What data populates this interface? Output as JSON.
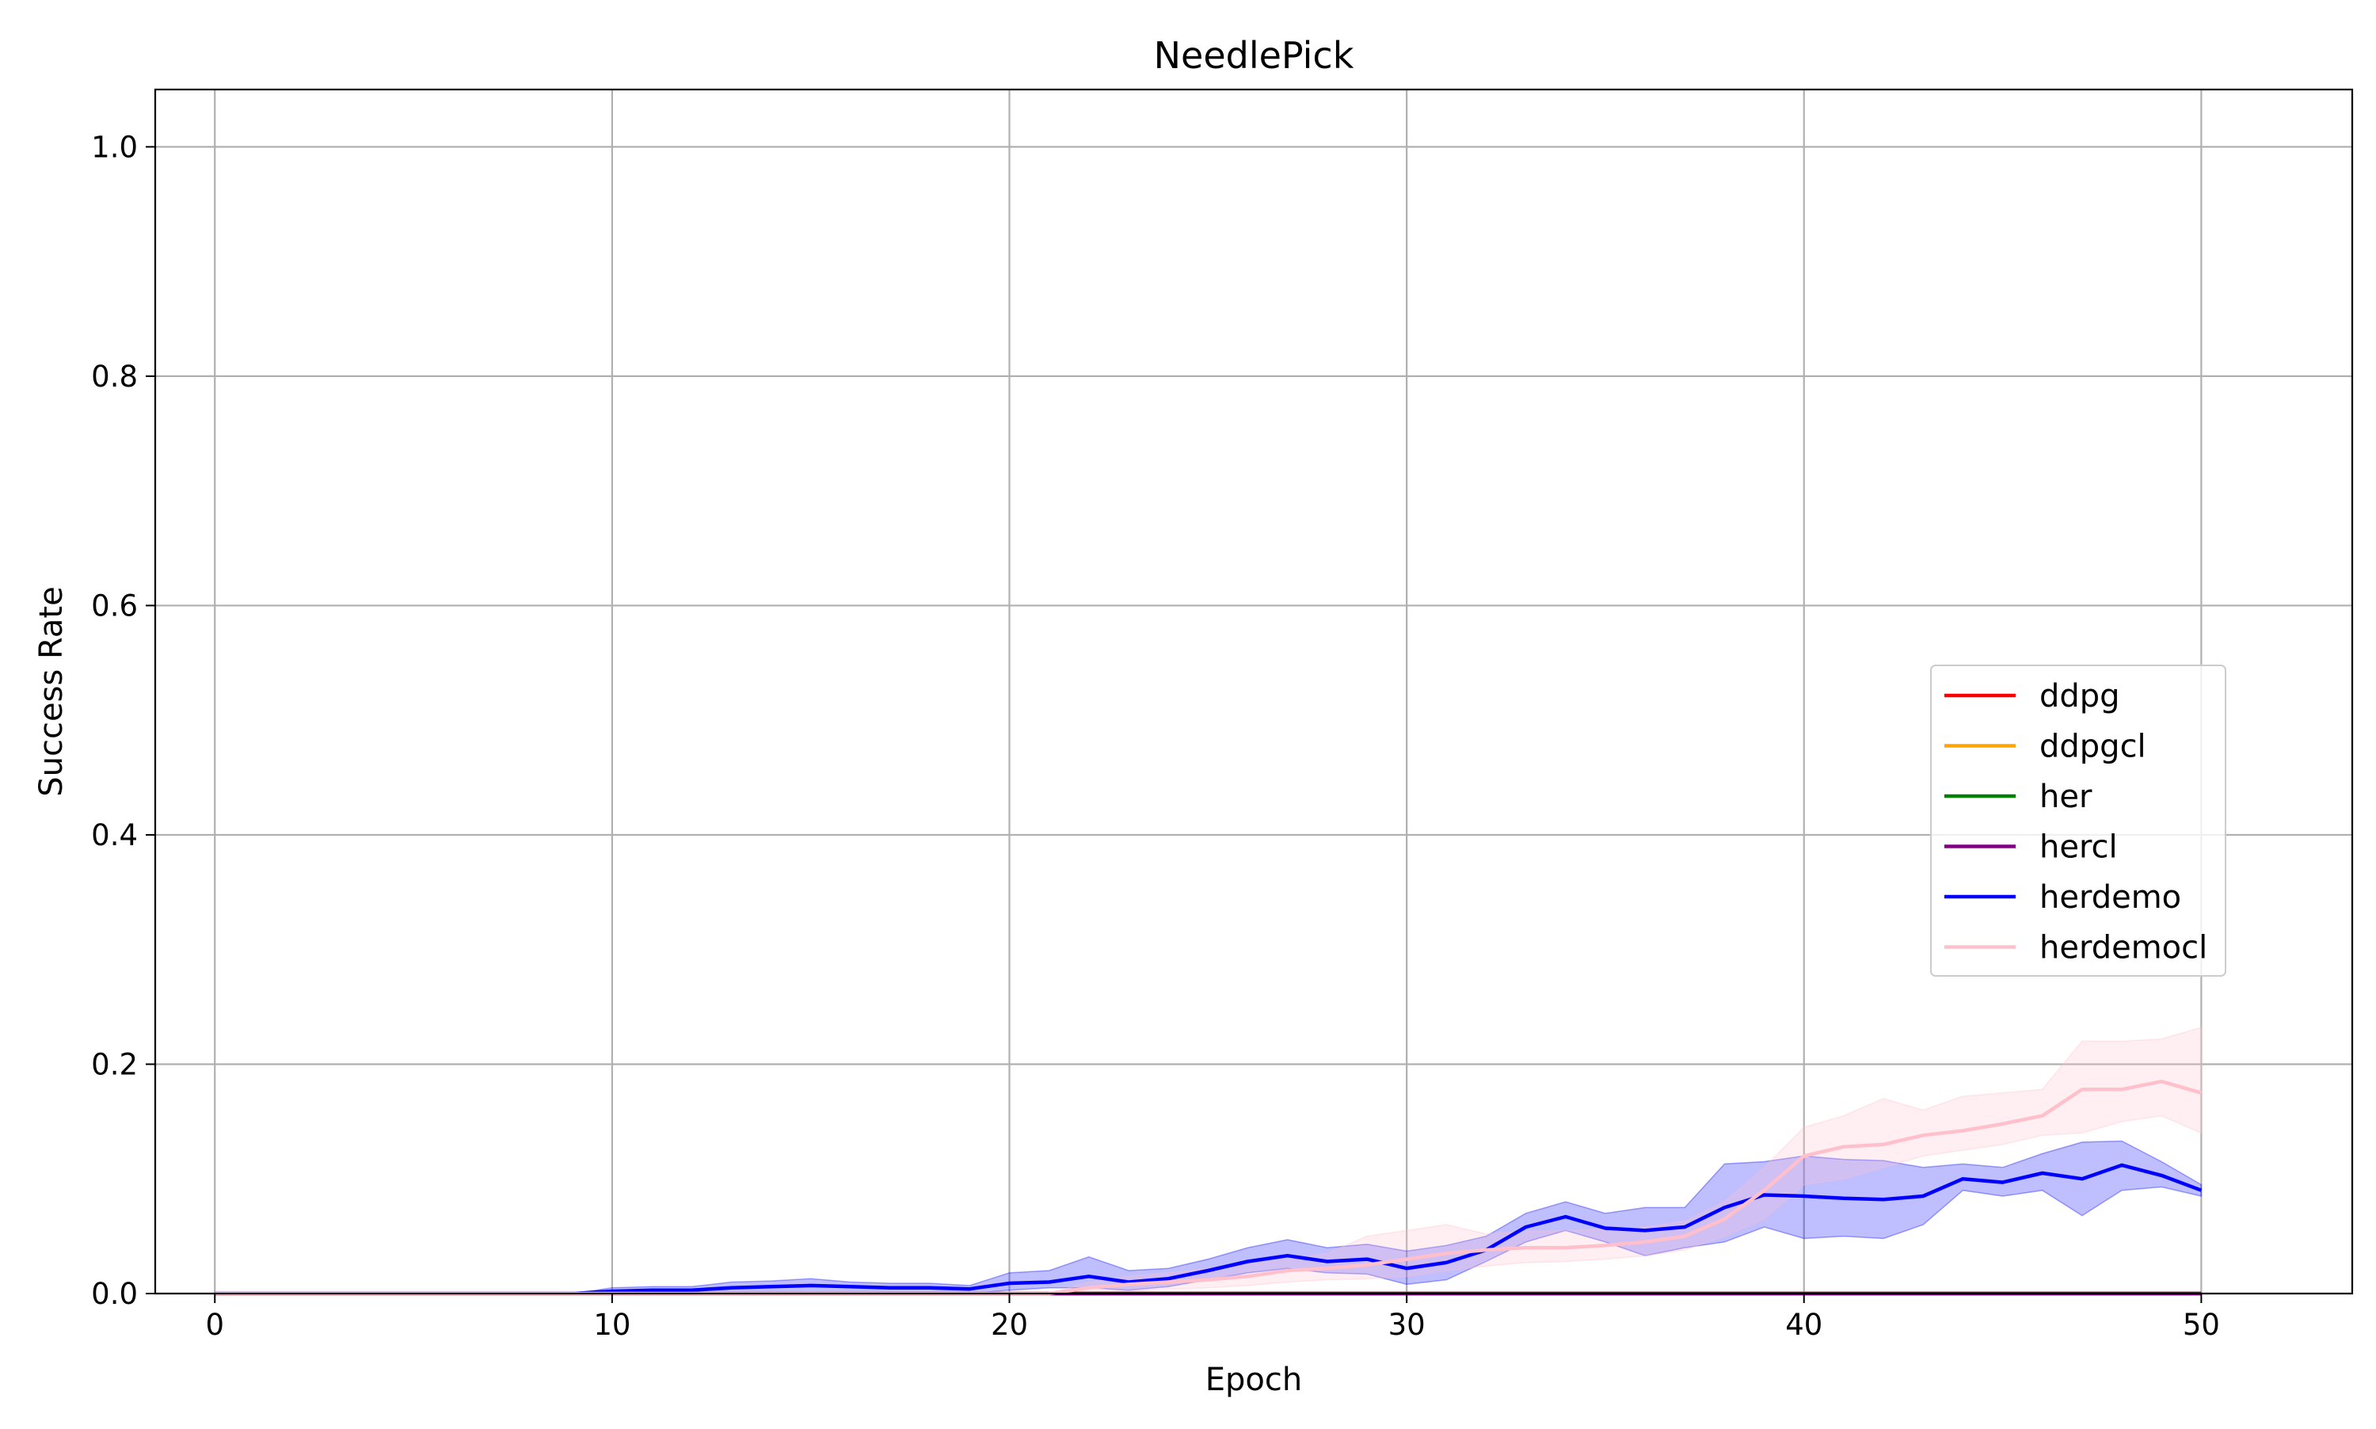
{
  "chart_data": {
    "type": "line",
    "title": "NeedlePick",
    "xlabel": "Epoch",
    "ylabel": "Success Rate",
    "xlim": [
      -1.5,
      53.8
    ],
    "ylim": [
      0,
      1.05
    ],
    "xticks": [
      0,
      10,
      20,
      30,
      40,
      50
    ],
    "yticks": [
      0.0,
      0.2,
      0.4,
      0.6,
      0.8,
      1.0
    ],
    "xtick_labels": [
      "0",
      "10",
      "20",
      "30",
      "40",
      "50"
    ],
    "ytick_labels": [
      "0.0",
      "0.2",
      "0.4",
      "0.6",
      "0.8",
      "1.0"
    ],
    "grid": true,
    "legend_position": "center-right",
    "x": [
      0,
      1,
      2,
      3,
      4,
      5,
      6,
      7,
      8,
      9,
      10,
      11,
      12,
      13,
      14,
      15,
      16,
      17,
      18,
      19,
      20,
      21,
      22,
      23,
      24,
      25,
      26,
      27,
      28,
      29,
      30,
      31,
      32,
      33,
      34,
      35,
      36,
      37,
      38,
      39,
      40,
      41,
      42,
      43,
      44,
      45,
      46,
      47,
      48,
      49,
      50
    ],
    "series": [
      {
        "name": "ddpg",
        "color": "#ff0000",
        "values": [
          0,
          0,
          0,
          0,
          0,
          0,
          0,
          0,
          0,
          0,
          0,
          0,
          0,
          0,
          0,
          0,
          0,
          0,
          0,
          0,
          0,
          0,
          0,
          0,
          0,
          0,
          0,
          0,
          0,
          0,
          0,
          0,
          0,
          0,
          0,
          0,
          0,
          0,
          0,
          0,
          0,
          0,
          0,
          0,
          0,
          0,
          0,
          0,
          0,
          0,
          0
        ]
      },
      {
        "name": "ddpgcl",
        "color": "#ffa500",
        "values": [
          0,
          0,
          0,
          0,
          0,
          0,
          0,
          0,
          0,
          0,
          0,
          0,
          0,
          0,
          0,
          0,
          0,
          0,
          0,
          0,
          0,
          0,
          0,
          0,
          0,
          0,
          0,
          0,
          0,
          0,
          0,
          0,
          0,
          0,
          0,
          0,
          0,
          0,
          0,
          0,
          0,
          0,
          0,
          0,
          0,
          0,
          0,
          0,
          0,
          0,
          0
        ]
      },
      {
        "name": "her",
        "color": "#008000",
        "values": [
          0,
          0,
          0,
          0,
          0,
          0,
          0,
          0,
          0,
          0,
          0,
          0,
          0,
          0,
          0,
          0,
          0,
          0,
          0,
          0,
          0,
          0,
          0,
          0,
          0,
          0,
          0,
          0,
          0,
          0,
          0,
          0,
          0,
          0,
          0,
          0,
          0,
          0,
          0,
          0,
          0,
          0,
          0,
          0,
          0,
          0,
          0,
          0,
          0,
          0,
          0
        ]
      },
      {
        "name": "hercl",
        "color": "#800080",
        "values": [
          0,
          0,
          0,
          0,
          0,
          0,
          0,
          0,
          0,
          0,
          0,
          0,
          0,
          0,
          0,
          0,
          0,
          0,
          0,
          0,
          0,
          0,
          0,
          0,
          0,
          0,
          0,
          0,
          0,
          0,
          0,
          0,
          0,
          0,
          0,
          0,
          0,
          0,
          0,
          0,
          0,
          0,
          0,
          0,
          0,
          0,
          0,
          0,
          0,
          0,
          0
        ]
      },
      {
        "name": "herdemo",
        "color": "#0000ff",
        "values": [
          0,
          0,
          0,
          0,
          0,
          0,
          0,
          0,
          0,
          0,
          0.002,
          0.003,
          0.003,
          0.005,
          0.006,
          0.007,
          0.006,
          0.005,
          0.005,
          0.004,
          0.009,
          0.01,
          0.015,
          0.01,
          0.013,
          0.02,
          0.028,
          0.033,
          0.028,
          0.03,
          0.022,
          0.027,
          0.038,
          0.058,
          0.067,
          0.057,
          0.055,
          0.058,
          0.075,
          0.086,
          0.085,
          0.083,
          0.082,
          0.085,
          0.1,
          0.097,
          0.105,
          0.1,
          0.112,
          0.103,
          0.09
        ],
        "lower": [
          0,
          0,
          0,
          0,
          0,
          0,
          0,
          0,
          0,
          0,
          0,
          0,
          0,
          0,
          0,
          0,
          0,
          0,
          0,
          0,
          0.003,
          0.005,
          0.005,
          0.003,
          0.006,
          0.012,
          0.018,
          0.022,
          0.018,
          0.017,
          0.008,
          0.012,
          0.028,
          0.045,
          0.055,
          0.045,
          0.033,
          0.04,
          0.045,
          0.058,
          0.048,
          0.05,
          0.048,
          0.06,
          0.09,
          0.085,
          0.09,
          0.068,
          0.09,
          0.093,
          0.085
        ],
        "upper": [
          0,
          0,
          0,
          0,
          0,
          0,
          0,
          0,
          0,
          0,
          0.005,
          0.006,
          0.006,
          0.01,
          0.011,
          0.013,
          0.01,
          0.009,
          0.009,
          0.007,
          0.018,
          0.02,
          0.032,
          0.02,
          0.022,
          0.03,
          0.04,
          0.047,
          0.04,
          0.043,
          0.037,
          0.042,
          0.05,
          0.07,
          0.08,
          0.07,
          0.075,
          0.075,
          0.113,
          0.115,
          0.12,
          0.117,
          0.116,
          0.11,
          0.113,
          0.11,
          0.122,
          0.132,
          0.133,
          0.115,
          0.095
        ]
      },
      {
        "name": "herdemocl",
        "color": "#ffc0cb",
        "values": [
          0,
          0,
          0,
          0,
          0,
          0,
          0,
          0,
          0,
          0,
          0,
          0,
          0,
          0,
          0,
          0,
          0,
          0,
          0,
          0,
          0,
          0,
          0.005,
          0.008,
          0.01,
          0.012,
          0.015,
          0.02,
          0.022,
          0.025,
          0.03,
          0.035,
          0.038,
          0.04,
          0.04,
          0.042,
          0.045,
          0.05,
          0.065,
          0.09,
          0.12,
          0.128,
          0.13,
          0.138,
          0.142,
          0.148,
          0.155,
          0.178,
          0.178,
          0.185,
          0.175
        ],
        "lower": [
          0,
          0,
          0,
          0,
          0,
          0,
          0,
          0,
          0,
          0,
          0,
          0,
          0,
          0,
          0,
          0,
          0,
          0,
          0,
          0,
          0,
          0,
          0,
          0.002,
          0.004,
          0.005,
          0.007,
          0.01,
          0.012,
          0.013,
          0.015,
          0.02,
          0.024,
          0.027,
          0.028,
          0.03,
          0.033,
          0.038,
          0.05,
          0.065,
          0.095,
          0.1,
          0.11,
          0.12,
          0.125,
          0.13,
          0.138,
          0.14,
          0.15,
          0.155,
          0.14
        ],
        "upper": [
          0,
          0,
          0,
          0,
          0,
          0,
          0,
          0,
          0,
          0,
          0,
          0,
          0,
          0,
          0,
          0,
          0,
          0,
          0,
          0,
          0,
          0,
          0.01,
          0.015,
          0.018,
          0.022,
          0.025,
          0.03,
          0.035,
          0.05,
          0.055,
          0.06,
          0.052,
          0.054,
          0.055,
          0.056,
          0.058,
          0.063,
          0.08,
          0.11,
          0.145,
          0.155,
          0.17,
          0.16,
          0.172,
          0.175,
          0.178,
          0.22,
          0.22,
          0.222,
          0.232
        ]
      }
    ]
  }
}
